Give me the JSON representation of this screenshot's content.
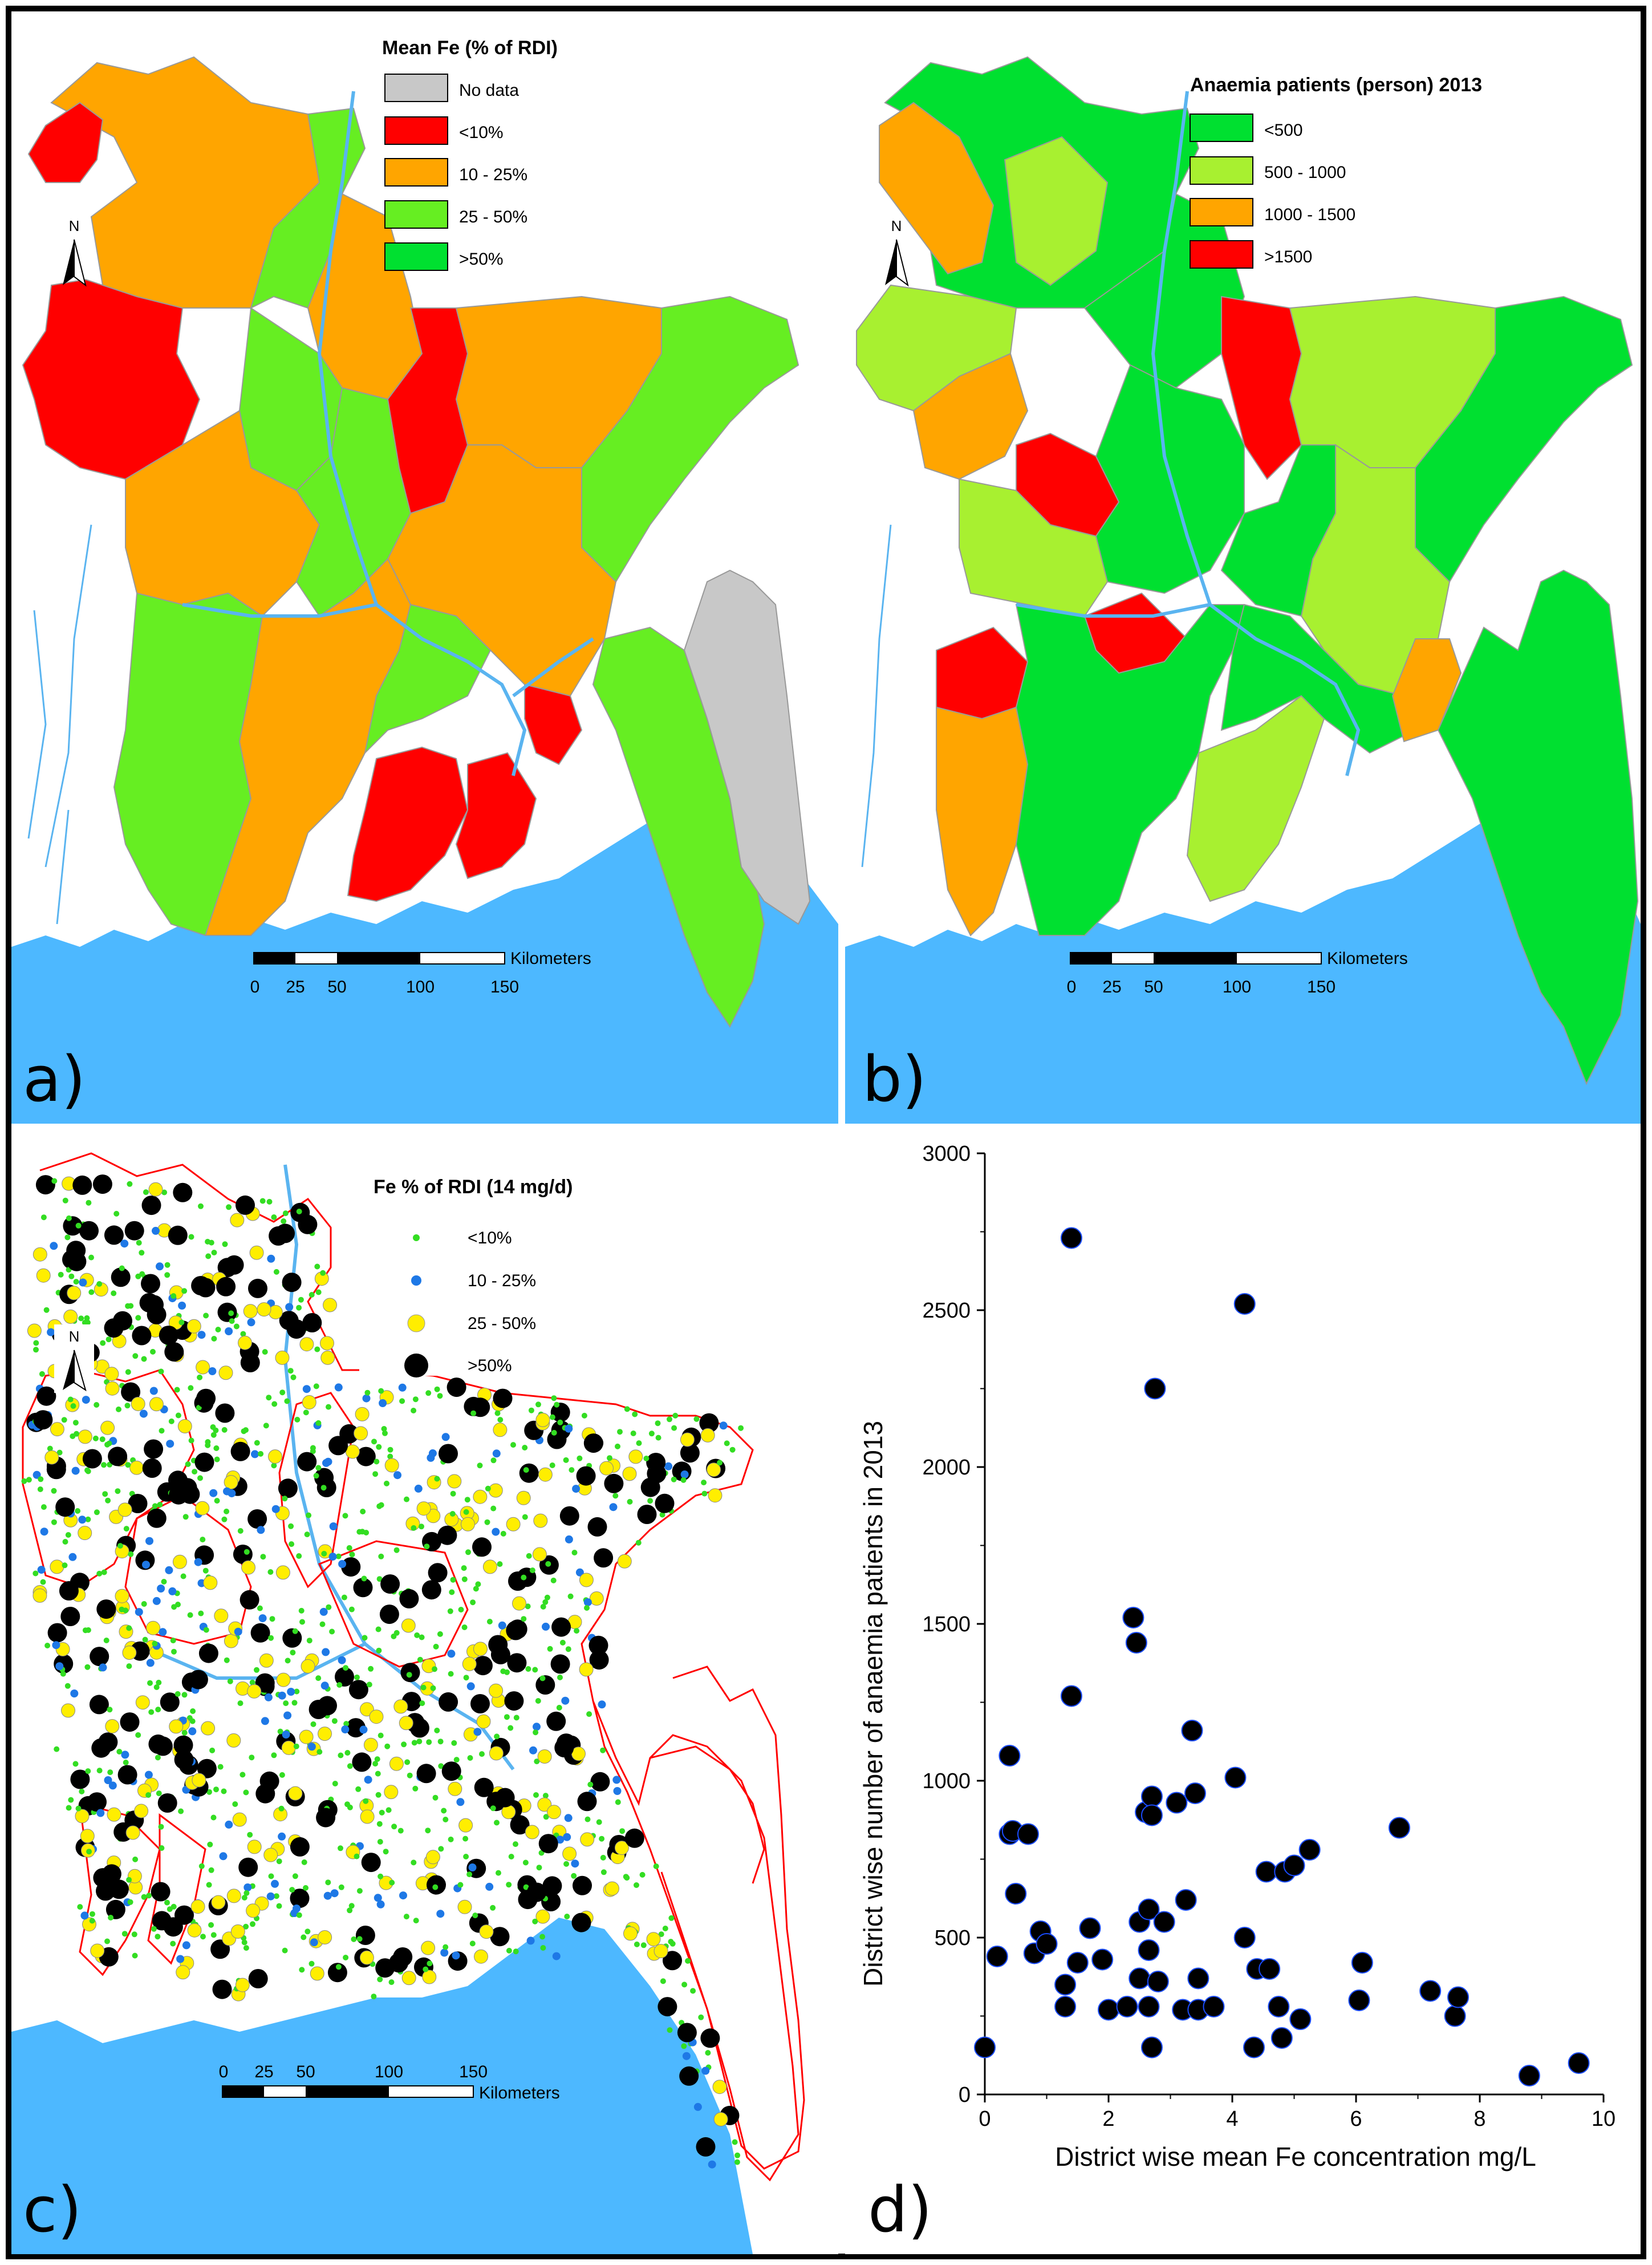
{
  "panels": {
    "a": {
      "panel_label": "a)",
      "legend_title": "Mean Fe (% of RDI)",
      "legend": [
        {
          "label": "No data",
          "color": "#c8c8c8"
        },
        {
          "label": "<10%",
          "color": "#ff0000"
        },
        {
          "label": "10 - 25%",
          "color": "#ffa500"
        },
        {
          "label": "25 - 50%",
          "color": "#66ee22"
        },
        {
          "label": ">50%",
          "color": "#00e030"
        }
      ],
      "north": "N",
      "scale_ticks": [
        "0",
        "25",
        "50",
        "100",
        "150"
      ],
      "scale_unit": "Kilometers"
    },
    "b": {
      "panel_label": "b)",
      "legend_title": "Anaemia patients (person) 2013",
      "legend": [
        {
          "label": "<500",
          "color": "#00e030"
        },
        {
          "label": "500 - 1000",
          "color": "#a8f030"
        },
        {
          "label": "1000 - 1500",
          "color": "#ffa500"
        },
        {
          "label": ">1500",
          "color": "#ff0000"
        }
      ],
      "north": "N",
      "scale_ticks": [
        "0",
        "25",
        "50",
        "100",
        "150"
      ],
      "scale_unit": "Kilometers"
    },
    "c": {
      "panel_label": "c)",
      "legend_title": "Fe % of RDI (14 mg/d)",
      "legend": [
        {
          "label": "<10%",
          "color": "#33dd22"
        },
        {
          "label": "10 - 25%",
          "color": "#1e78e6"
        },
        {
          "label": "25 - 50%",
          "color": "#ffee00"
        },
        {
          "label": ">50%",
          "color": "#000000"
        }
      ],
      "north": "N",
      "scale_ticks": [
        "0",
        "25",
        "50",
        "100",
        "150"
      ],
      "scale_unit": "Kilometers"
    },
    "d": {
      "panel_label": "d)"
    }
  },
  "colors": {
    "sea": "#4db8ff",
    "river": "#5ab4f0",
    "district_border": "#999999",
    "red_outline": "#ff0000"
  },
  "chart_data": {
    "type": "scatter",
    "xlabel": "District wise mean Fe concentration mg/L",
    "ylabel": "District wise number of anaemia patients in 2013",
    "xlim": [
      0,
      10
    ],
    "ylim": [
      0,
      3000
    ],
    "xticks": [
      "0",
      "2",
      "4",
      "6",
      "8",
      "10"
    ],
    "yticks": [
      "0",
      "500",
      "1000",
      "1500",
      "2000",
      "2500",
      "3000"
    ],
    "grid": false,
    "points": [
      [
        0.0,
        150
      ],
      [
        0.2,
        440
      ],
      [
        0.4,
        1080
      ],
      [
        0.4,
        830
      ],
      [
        0.45,
        840
      ],
      [
        0.5,
        640
      ],
      [
        0.7,
        830
      ],
      [
        0.8,
        450
      ],
      [
        0.9,
        520
      ],
      [
        1.0,
        480
      ],
      [
        1.3,
        280
      ],
      [
        1.3,
        350
      ],
      [
        1.4,
        2730
      ],
      [
        1.4,
        1270
      ],
      [
        1.5,
        420
      ],
      [
        1.7,
        530
      ],
      [
        1.9,
        430
      ],
      [
        2.0,
        270
      ],
      [
        2.3,
        280
      ],
      [
        2.4,
        1520
      ],
      [
        2.45,
        1440
      ],
      [
        2.5,
        550
      ],
      [
        2.5,
        370
      ],
      [
        2.6,
        900
      ],
      [
        2.65,
        590
      ],
      [
        2.65,
        460
      ],
      [
        2.65,
        280
      ],
      [
        2.7,
        950
      ],
      [
        2.7,
        890
      ],
      [
        2.7,
        150
      ],
      [
        2.75,
        2250
      ],
      [
        2.8,
        360
      ],
      [
        2.9,
        550
      ],
      [
        3.1,
        930
      ],
      [
        3.2,
        270
      ],
      [
        3.25,
        620
      ],
      [
        3.35,
        1160
      ],
      [
        3.4,
        960
      ],
      [
        3.45,
        370
      ],
      [
        3.45,
        270
      ],
      [
        3.7,
        280
      ],
      [
        4.05,
        1010
      ],
      [
        4.2,
        2520
      ],
      [
        4.2,
        500
      ],
      [
        4.35,
        150
      ],
      [
        4.4,
        400
      ],
      [
        4.55,
        710
      ],
      [
        4.6,
        400
      ],
      [
        4.75,
        280
      ],
      [
        4.8,
        180
      ],
      [
        4.85,
        710
      ],
      [
        5.0,
        730
      ],
      [
        5.1,
        240
      ],
      [
        5.25,
        780
      ],
      [
        6.05,
        300
      ],
      [
        6.1,
        420
      ],
      [
        6.7,
        850
      ],
      [
        7.2,
        330
      ],
      [
        7.6,
        250
      ],
      [
        7.65,
        310
      ],
      [
        8.8,
        60
      ],
      [
        9.6,
        100
      ]
    ]
  }
}
